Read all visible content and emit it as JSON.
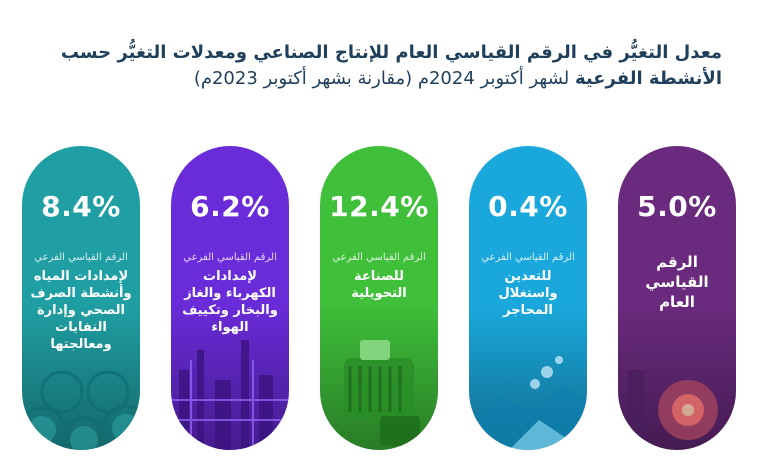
{
  "title": {
    "line1": "معدل التغيُّر في الرقم القياسي العام للإنتاج الصناعي ومعدلات التغيُّر حسب",
    "line2_bold": "الأنشطة الفرعية",
    "line2_rest": " لشهر أكتوبر 2024م (مقارنة بشهر أكتوبر 2023م)"
  },
  "colors": {
    "water": "#1f9fa3",
    "electricity": "#6a2bd9",
    "manufacturing": "#3fbf3a",
    "mining": "#1aa8dc",
    "general": "#6a2a7e",
    "title": "#1f3f5b"
  },
  "chart_data": {
    "type": "bar",
    "title": "معدل التغيُّر في الرقم القياسي العام للإنتاج الصناعي ومعدلات التغيُّر حسب الأنشطة الفرعية لشهر أكتوبر 2024م (مقارنة بشهر أكتوبر 2023م)",
    "categories": [
      "الرقم القياسي العام",
      "الرقم القياسي الفرعي للتعدين واستغلال المحاجر",
      "الرقم القياسي الفرعي للصناعة التحويلية",
      "الرقم القياسي الفرعي لإمدادات الكهرباء والغاز والبخار وتكييف الهواء",
      "الرقم القياسي الفرعي لإمدادات المياه وأنشطة الصرف الصحي وإدارة النفايات ومعالجتها"
    ],
    "values": [
      5.0,
      0.4,
      12.4,
      6.2,
      8.4
    ],
    "unit": "%",
    "cards": [
      {
        "key": "water",
        "value_label": "8.4%",
        "sub": "الرقم القياسي الفرعي",
        "desc": "لإمدادات المياه وأنشطة الصرف الصحي وإدارة النفايات ومعالجتها"
      },
      {
        "key": "electricity",
        "value_label": "6.2%",
        "sub": "الرقم القياسي الفرعي",
        "desc": "لإمدادات الكهرباء والغاز والبخار وتكييف الهواء"
      },
      {
        "key": "manufacturing",
        "value_label": "12.4%",
        "sub": "الرقم القياسي الفرعي",
        "desc": "للصناعة التحويلية"
      },
      {
        "key": "mining",
        "value_label": "0.4%",
        "sub": "الرقم القياسي الفرعي",
        "desc": "للتعدين واستغلال المحاجر"
      },
      {
        "key": "general",
        "value_label": "5.0%",
        "desc": "الرقم القياسي العام"
      }
    ]
  }
}
